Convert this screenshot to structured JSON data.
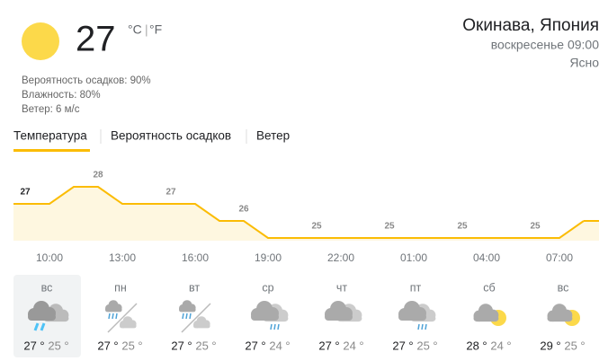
{
  "current": {
    "temperature": 27,
    "unit_c": "°C",
    "unit_separator": "|",
    "unit_f": "°F",
    "details": [
      "Вероятность осадков: 90%",
      "Влажность: 80%",
      "Ветер: 6 м/с"
    ]
  },
  "location": {
    "name": "Окинава, Япония",
    "time": "воскресенье 09:00",
    "condition": "Ясно"
  },
  "tabs": [
    "Температура",
    "Вероятность осадков",
    "Ветер"
  ],
  "chart_data": {
    "type": "area",
    "color": "#fbbc04",
    "categories": [
      null,
      "10:00",
      null,
      null,
      "13:00",
      null,
      null,
      "16:00",
      null,
      null,
      "19:00",
      null,
      null,
      "22:00",
      null,
      null,
      "01:00",
      null,
      null,
      "04:00",
      null,
      null,
      "07:00",
      null
    ],
    "values": [
      27,
      27,
      28,
      28,
      27,
      27,
      27,
      27,
      26,
      26,
      25,
      25,
      25,
      25,
      25,
      25,
      25,
      25,
      25,
      25,
      25,
      25,
      25,
      26
    ]
  },
  "days": [
    {
      "name": "вс",
      "high": "27 °",
      "low": "25 °"
    },
    {
      "name": "пн",
      "high": "27 °",
      "low": "25 °"
    },
    {
      "name": "вт",
      "high": "27 °",
      "low": "25 °"
    },
    {
      "name": "ср",
      "high": "27 °",
      "low": "24 °"
    },
    {
      "name": "чт",
      "high": "27 °",
      "low": "24 °"
    },
    {
      "name": "пт",
      "high": "27 °",
      "low": "25 °"
    },
    {
      "name": "сб",
      "high": "28 °",
      "low": "24 °"
    },
    {
      "name": "вс",
      "high": "29 °",
      "low": "25 °"
    }
  ]
}
